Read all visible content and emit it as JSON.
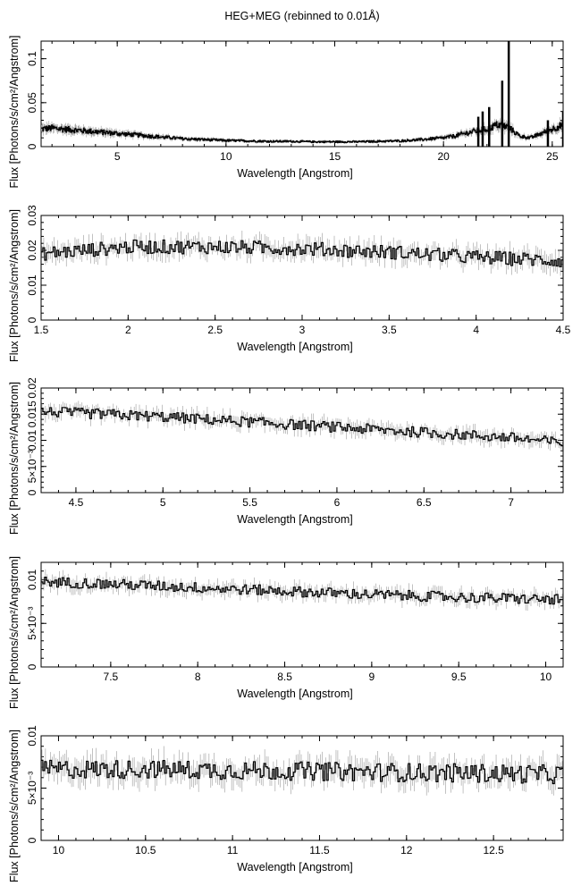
{
  "title": "HEG+MEG (rebinned to 0.01Å)",
  "chart_data": [
    {
      "type": "line",
      "xlabel": "Wavelength [Angstrom]",
      "ylabel": "Flux [Photons/s/cm²/Angstrom]",
      "xlim": [
        1.5,
        25.5
      ],
      "ylim": [
        0,
        0.12
      ],
      "xticks": [
        5,
        10,
        15,
        20,
        25
      ],
      "yticks": [
        0,
        0.05,
        0.1
      ],
      "ytick_labels": [
        "0",
        "0.05",
        "0.1"
      ],
      "series": [
        {
          "x": [
            1.5,
            2,
            3,
            4,
            5,
            6,
            7,
            8,
            9,
            10,
            11,
            12,
            13,
            14,
            15,
            16,
            17,
            18,
            19,
            20,
            20.5,
            21,
            21.5,
            22,
            22.5,
            23,
            23.5,
            24,
            24.5,
            25,
            25.5
          ],
          "y": [
            0.02,
            0.021,
            0.019,
            0.017,
            0.015,
            0.013,
            0.011,
            0.009,
            0.008,
            0.007,
            0.0065,
            0.006,
            0.006,
            0.0055,
            0.0055,
            0.0055,
            0.006,
            0.0065,
            0.008,
            0.01,
            0.012,
            0.015,
            0.018,
            0.02,
            0.025,
            0.022,
            0.012,
            0.01,
            0.015,
            0.02,
            0.025
          ],
          "lines": [
            {
              "x": 21.6,
              "y": 0.034
            },
            {
              "x": 21.8,
              "y": 0.04
            },
            {
              "x": 22.1,
              "y": 0.045
            },
            {
              "x": 22.7,
              "y": 0.075
            },
            {
              "x": 23.0,
              "y": 0.12
            },
            {
              "x": 24.8,
              "y": 0.03
            },
            {
              "x": 25.5,
              "y": 0.04
            }
          ]
        }
      ]
    },
    {
      "type": "line",
      "xlabel": "Wavelength [Angstrom]",
      "ylabel": "Flux [Photons/s/cm²/Angstrom]",
      "xlim": [
        1.5,
        4.5
      ],
      "ylim": [
        0,
        0.03
      ],
      "xticks": [
        1.5,
        2,
        2.5,
        3,
        3.5,
        4,
        4.5
      ],
      "yticks": [
        0,
        0.01,
        0.02,
        0.03
      ],
      "ytick_labels": [
        "0",
        "0.01",
        "0.02",
        "0.03"
      ],
      "series": [
        {
          "x": [
            1.5,
            2,
            2.5,
            3,
            3.5,
            4,
            4.5
          ],
          "y": [
            0.019,
            0.021,
            0.021,
            0.0205,
            0.0195,
            0.018,
            0.017
          ],
          "noise": 0.002
        }
      ]
    },
    {
      "type": "line",
      "xlabel": "Wavelength [Angstrom]",
      "ylabel": "Flux [Photons/s/cm²/Angstrom]",
      "xlim": [
        4.3,
        7.3
      ],
      "ylim": [
        0,
        0.02
      ],
      "xticks": [
        4.5,
        5,
        5.5,
        6,
        6.5,
        7
      ],
      "yticks": [
        0,
        0.005,
        0.01,
        0.015,
        0.02
      ],
      "ytick_labels": [
        "0",
        "5×10⁻³",
        "0.01",
        "0.015",
        "0.02"
      ],
      "series": [
        {
          "x": [
            4.3,
            5,
            5.5,
            6,
            6.5,
            7,
            7.3
          ],
          "y": [
            0.0155,
            0.0145,
            0.0135,
            0.0125,
            0.0115,
            0.0105,
            0.0095
          ],
          "noise": 0.001
        }
      ]
    },
    {
      "type": "line",
      "xlabel": "Wavelength [Angstrom]",
      "ylabel": "Flux [Photons/s/cm²/Angstrom]",
      "xlim": [
        7.1,
        10.1
      ],
      "ylim": [
        0,
        0.012
      ],
      "xticks": [
        7.5,
        8,
        8.5,
        9,
        9.5,
        10
      ],
      "yticks": [
        0,
        0.005,
        0.01
      ],
      "ytick_labels": [
        "0",
        "5×10⁻³",
        "0.01"
      ],
      "series": [
        {
          "x": [
            7.1,
            7.5,
            8,
            8.5,
            9,
            9.5,
            10.1
          ],
          "y": [
            0.0098,
            0.0095,
            0.0091,
            0.0087,
            0.0083,
            0.008,
            0.0077
          ],
          "noise": 0.0006
        }
      ]
    },
    {
      "type": "line",
      "xlabel": "Wavelength [Angstrom]",
      "ylabel": "Flux [Photons/s/cm²/Angstrom]",
      "xlim": [
        9.9,
        12.9
      ],
      "ylim": [
        0,
        0.01
      ],
      "xticks": [
        10,
        10.5,
        11,
        11.5,
        12,
        12.5
      ],
      "yticks": [
        0,
        0.005,
        0.01
      ],
      "ytick_labels": [
        "0",
        "5×10⁻³",
        "0.01"
      ],
      "series": [
        {
          "x": [
            9.9,
            10.5,
            11,
            11.5,
            12,
            12.5,
            12.9
          ],
          "y": [
            0.0068,
            0.0068,
            0.0067,
            0.0066,
            0.0065,
            0.0064,
            0.0063
          ],
          "noise": 0.0009
        }
      ]
    }
  ]
}
